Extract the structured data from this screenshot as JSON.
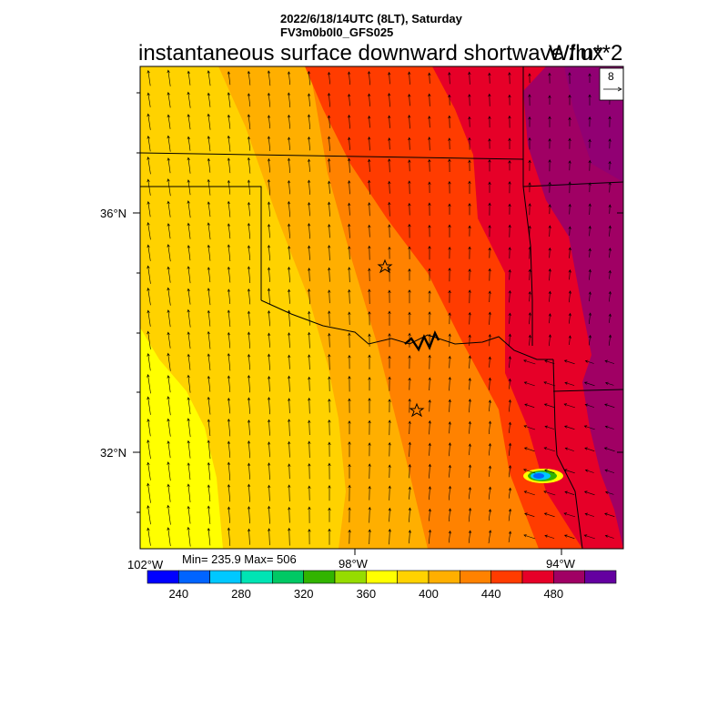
{
  "header": {
    "line1": "2022/6/18/14UTC (8LT), Saturday",
    "line2": "FV3m0b0l0_GFS025"
  },
  "title": "instantaneous surface downward shortwave flux",
  "units": "W/m**2",
  "vector_reference": {
    "magnitude": "8"
  },
  "stats": "Min= 235.9 Max= 506",
  "map": {
    "lat_labels": [
      "36°N",
      "32°N"
    ],
    "lon_labels": [
      "102°W",
      "98°W",
      "94°W"
    ],
    "region": "Southern Plains (Oklahoma / North Texas)",
    "features": [
      "state boundaries",
      "Red River",
      "wind vectors",
      "station star markers"
    ]
  },
  "colorbar": {
    "colors": [
      "#0000ff",
      "#0064ff",
      "#00c8ff",
      "#00e4b4",
      "#00c864",
      "#32b400",
      "#96dc00",
      "#ffff00",
      "#ffd200",
      "#ffaf00",
      "#ff8200",
      "#ff3c00",
      "#e60028",
      "#a00064",
      "#6400a0"
    ],
    "labels": [
      "240",
      "280",
      "320",
      "360",
      "400",
      "440",
      "480"
    ]
  },
  "chart_data": {
    "type": "heatmap",
    "title": "instantaneous surface downward shortwave flux",
    "units": "W/m**2",
    "min": 235.9,
    "max": 506,
    "levels": [
      240,
      260,
      280,
      300,
      320,
      340,
      360,
      380,
      400,
      420,
      440,
      460,
      480,
      500
    ],
    "x_ticks": [
      "102°W",
      "98°W",
      "94°W"
    ],
    "y_ticks": [
      "36°N",
      "32°N"
    ],
    "gradient": "values increase from ~380 in the southwest to ~500 in the northeast"
  }
}
